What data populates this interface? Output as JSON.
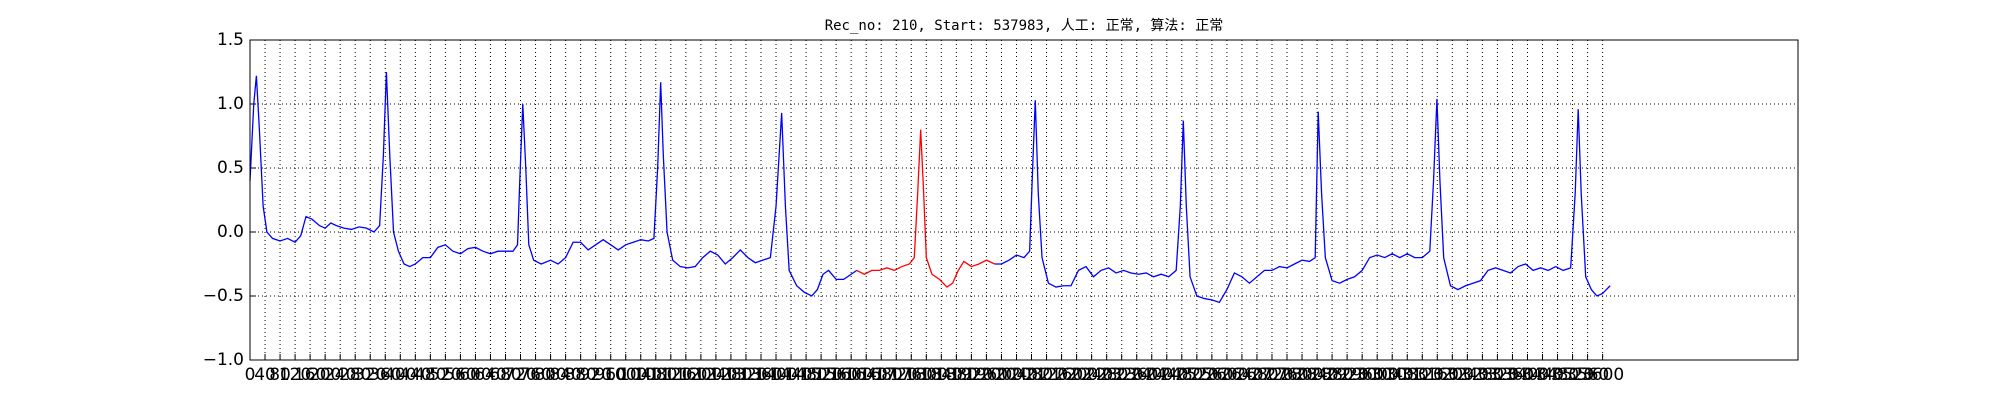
{
  "chart_data": {
    "type": "line",
    "title": "Rec_no: 210, Start: 537983, 人工: 正常, 算法: 正常",
    "xlim": [
      0,
      4120
    ],
    "ylim": [
      -1.0,
      1.5
    ],
    "xticks": [
      0,
      40,
      80,
      120,
      160,
      200,
      240,
      280,
      320,
      360,
      400,
      440,
      480,
      520,
      560,
      600,
      640,
      680,
      720,
      760,
      800,
      840,
      880,
      920,
      960,
      1000,
      1040,
      1080,
      1120,
      1160,
      1200,
      1240,
      1280,
      1320,
      1360,
      1400,
      1440,
      1480,
      1520,
      1560,
      1600,
      1640,
      1680,
      1720,
      1760,
      1800,
      1840,
      1880,
      1920,
      1960,
      2000,
      2040,
      2080,
      2120,
      2160,
      2200,
      2240,
      2280,
      2320,
      2360,
      2400,
      2440,
      2480,
      2520,
      2560,
      2600,
      2640,
      2680,
      2720,
      2760,
      2800,
      2840,
      2880,
      2920,
      2960,
      3000,
      3040,
      3080,
      3120,
      3160,
      3200,
      3240,
      3280,
      3320,
      3360,
      3400,
      3440,
      3480,
      3520,
      3560,
      3600
    ],
    "yticks": [
      {
        "value": -1.0,
        "label": "−1.0"
      },
      {
        "value": -0.5,
        "label": "−0.5"
      },
      {
        "value": 0,
        "label": "0.0"
      },
      {
        "value": 0.5,
        "label": "0.5"
      },
      {
        "value": 1.0,
        "label": "1.0"
      },
      {
        "value": 1.5,
        "label": "1.5"
      }
    ],
    "grid": true,
    "x": [
      0,
      10,
      17,
      25,
      35,
      45,
      60,
      80,
      100,
      120,
      135,
      149,
      165,
      185,
      200,
      215,
      230,
      250,
      270,
      290,
      310,
      330,
      345,
      355,
      363,
      372,
      382,
      395,
      410,
      425,
      440,
      460,
      480,
      500,
      520,
      540,
      560,
      580,
      600,
      620,
      640,
      660,
      680,
      700,
      712,
      718,
      726,
      734,
      742,
      755,
      775,
      800,
      820,
      840,
      860,
      880,
      900,
      920,
      940,
      960,
      980,
      1000,
      1020,
      1040,
      1060,
      1075,
      1085,
      1093,
      1100,
      1110,
      1125,
      1145,
      1165,
      1185,
      1205,
      1225,
      1245,
      1265,
      1285,
      1305,
      1325,
      1345,
      1365,
      1385,
      1400,
      1415,
      1425,
      1435,
      1455,
      1475,
      1495,
      1510,
      1525,
      1540,
      1560,
      1580,
      1600,
      1615,
      1635,
      1655,
      1675,
      1695,
      1715,
      1735,
      1755,
      1768,
      1777,
      1785,
      1793,
      1800,
      1815,
      1835,
      1855,
      1870,
      1885,
      1900,
      1920,
      1940,
      1960,
      1982,
      2000,
      2020,
      2040,
      2060,
      2075,
      2083,
      2090,
      2098,
      2108,
      2125,
      2145,
      2165,
      2185,
      2205,
      2225,
      2245,
      2265,
      2285,
      2305,
      2325,
      2345,
      2365,
      2385,
      2405,
      2425,
      2445,
      2465,
      2476,
      2484,
      2492,
      2502,
      2520,
      2540,
      2560,
      2580,
      2600,
      2620,
      2640,
      2660,
      2680,
      2700,
      2720,
      2740,
      2760,
      2780,
      2800,
      2820,
      2835,
      2843,
      2852,
      2862,
      2880,
      2900,
      2920,
      2940,
      2960,
      2980,
      3000,
      3020,
      3040,
      3060,
      3080,
      3100,
      3120,
      3140,
      3150,
      3159,
      3167,
      3177,
      3195,
      3215,
      3235,
      3255,
      3275,
      3295,
      3315,
      3335,
      3355,
      3375,
      3395,
      3415,
      3435,
      3455,
      3475,
      3495,
      3515,
      3527,
      3535,
      3543,
      3555,
      3570,
      3585,
      3600,
      3610,
      3620
    ],
    "series": [
      {
        "color": "#0000ff",
        "values": [
          0.4,
          1.0,
          1.22,
          0.8,
          0.2,
          0.0,
          -0.05,
          -0.07,
          -0.05,
          -0.08,
          -0.03,
          0.12,
          0.1,
          0.05,
          0.03,
          0.07,
          0.05,
          0.03,
          0.02,
          0.04,
          0.03,
          0.0,
          0.05,
          0.6,
          1.25,
          0.6,
          0.0,
          -0.15,
          -0.25,
          -0.27,
          -0.25,
          -0.2,
          -0.2,
          -0.12,
          -0.1,
          -0.15,
          -0.17,
          -0.13,
          -0.12,
          -0.15,
          -0.17,
          -0.15,
          -0.15,
          -0.15,
          -0.1,
          0.4,
          1.0,
          0.5,
          -0.1,
          -0.22,
          -0.25,
          -0.22,
          -0.25,
          -0.2,
          -0.08,
          -0.08,
          -0.14,
          -0.1,
          -0.06,
          -0.1,
          -0.14,
          -0.1,
          -0.08,
          -0.06,
          -0.07,
          -0.05,
          0.5,
          1.17,
          0.6,
          0.0,
          -0.22,
          -0.27,
          -0.28,
          -0.27,
          -0.2,
          -0.15,
          -0.18,
          -0.25,
          -0.2,
          -0.14,
          -0.2,
          -0.24,
          -0.22,
          -0.2,
          0.2,
          0.93,
          0.2,
          -0.3,
          -0.42,
          -0.47,
          -0.5,
          -0.45,
          -0.33,
          -0.3,
          -0.37,
          -0.37,
          -0.33,
          -0.3,
          null,
          null,
          null,
          null,
          null,
          null,
          null,
          null,
          null,
          null,
          null,
          null,
          null,
          null,
          null,
          null,
          null,
          null,
          null,
          null,
          null,
          -0.25,
          -0.25,
          -0.22,
          -0.18,
          -0.2,
          -0.15,
          0.5,
          1.03,
          0.3,
          -0.2,
          -0.4,
          -0.43,
          -0.42,
          -0.42,
          -0.3,
          -0.27,
          -0.35,
          -0.3,
          -0.28,
          -0.32,
          -0.3,
          -0.32,
          -0.33,
          -0.32,
          -0.35,
          -0.33,
          -0.35,
          -0.3,
          0.2,
          0.87,
          0.2,
          -0.35,
          -0.5,
          -0.52,
          -0.53,
          -0.55,
          -0.45,
          -0.32,
          -0.35,
          -0.4,
          -0.35,
          -0.3,
          -0.3,
          -0.27,
          -0.28,
          -0.25,
          -0.22,
          -0.23,
          -0.2,
          0.94,
          0.3,
          -0.2,
          -0.38,
          -0.4,
          -0.37,
          -0.35,
          -0.3,
          -0.2,
          -0.18,
          -0.2,
          -0.17,
          -0.2,
          -0.17,
          -0.2,
          -0.2,
          -0.15,
          0.4,
          1.04,
          0.4,
          -0.2,
          -0.42,
          -0.45,
          -0.42,
          -0.4,
          -0.38,
          -0.3,
          -0.28,
          -0.3,
          -0.32,
          -0.27,
          -0.25,
          -0.3,
          -0.28,
          -0.3,
          -0.27,
          -0.3,
          -0.28,
          0.3,
          0.96,
          0.3,
          -0.35,
          -0.45,
          -0.5,
          -0.48,
          -0.45,
          -0.42
        ]
      },
      {
        "color": "#ff0000",
        "values": [
          null,
          null,
          null,
          null,
          null,
          null,
          null,
          null,
          null,
          null,
          null,
          null,
          null,
          null,
          null,
          null,
          null,
          null,
          null,
          null,
          null,
          null,
          null,
          null,
          null,
          null,
          null,
          null,
          null,
          null,
          null,
          null,
          null,
          null,
          null,
          null,
          null,
          null,
          null,
          null,
          null,
          null,
          null,
          null,
          null,
          null,
          null,
          null,
          null,
          null,
          null,
          null,
          null,
          null,
          null,
          null,
          null,
          null,
          null,
          null,
          null,
          null,
          null,
          null,
          null,
          null,
          null,
          null,
          null,
          null,
          null,
          null,
          null,
          null,
          null,
          null,
          null,
          null,
          null,
          null,
          null,
          null,
          null,
          null,
          null,
          null,
          null,
          null,
          null,
          null,
          null,
          null,
          null,
          null,
          null,
          null,
          null,
          -0.3,
          -0.33,
          -0.3,
          -0.3,
          -0.28,
          -0.3,
          -0.27,
          -0.25,
          -0.2,
          0.3,
          0.8,
          0.3,
          -0.2,
          -0.33,
          -0.37,
          -0.43,
          -0.4,
          -0.3,
          -0.23,
          -0.27,
          -0.25,
          -0.22,
          -0.25,
          null,
          null,
          null,
          null,
          null,
          null,
          null,
          null,
          null,
          null,
          null,
          null,
          null,
          null,
          null,
          null,
          null,
          null,
          null,
          null,
          null,
          null,
          null,
          null,
          null,
          null,
          null,
          null,
          null,
          null,
          null,
          null,
          null,
          null,
          null,
          null,
          null,
          null,
          null,
          null,
          null,
          null,
          null,
          null,
          null,
          null,
          null,
          null,
          null,
          null,
          null,
          null,
          null,
          null,
          null,
          null,
          null,
          null,
          null,
          null,
          null,
          null,
          null,
          null,
          null,
          null,
          null,
          null,
          null,
          null,
          null,
          null,
          null,
          null,
          null,
          null,
          null,
          null,
          null,
          null,
          null,
          null,
          null,
          null,
          null,
          null,
          null,
          null,
          null,
          null,
          null,
          null,
          null,
          null,
          null
        ]
      }
    ]
  }
}
